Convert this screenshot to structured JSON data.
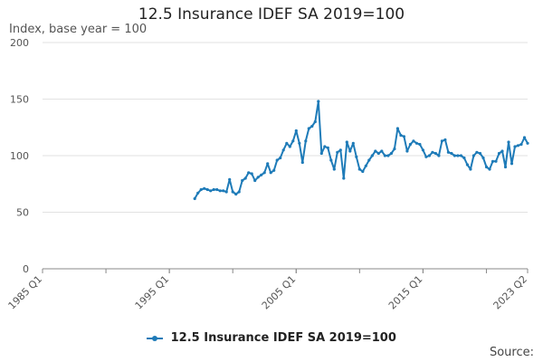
{
  "chart_data": {
    "type": "line",
    "title": "12.5 Insurance IDEF SA 2019=100",
    "ylabel": "Index, base year = 100",
    "ylim": [
      0,
      200
    ],
    "yticks": [
      0,
      50,
      100,
      150,
      200
    ],
    "xtick_labels": [
      "1985 Q1",
      "1995 Q1",
      "2005 Q1",
      "2015 Q1",
      "2023 Q2"
    ],
    "x_start": "1985 Q1",
    "x_end": "2023 Q2",
    "grid": "horizontal",
    "legend_position": "bottom",
    "series": [
      {
        "name": "12.5 Insurance IDEF SA 2019=100",
        "color": "#1e7bb8",
        "data": [
          [
            "1997 Q1",
            62
          ],
          [
            "1997 Q2",
            67
          ],
          [
            "1997 Q3",
            70
          ],
          [
            "1997 Q4",
            71
          ],
          [
            "1998 Q1",
            70
          ],
          [
            "1998 Q2",
            69
          ],
          [
            "1998 Q3",
            70
          ],
          [
            "1998 Q4",
            70
          ],
          [
            "1999 Q1",
            69
          ],
          [
            "1999 Q2",
            69
          ],
          [
            "1999 Q3",
            68
          ],
          [
            "1999 Q4",
            79
          ],
          [
            "2000 Q1",
            68
          ],
          [
            "2000 Q2",
            66
          ],
          [
            "2000 Q3",
            68
          ],
          [
            "2000 Q4",
            78
          ],
          [
            "2001 Q1",
            80
          ],
          [
            "2001 Q2",
            85
          ],
          [
            "2001 Q3",
            84
          ],
          [
            "2001 Q4",
            78
          ],
          [
            "2002 Q1",
            81
          ],
          [
            "2002 Q2",
            83
          ],
          [
            "2002 Q3",
            85
          ],
          [
            "2002 Q4",
            93
          ],
          [
            "2003 Q1",
            85
          ],
          [
            "2003 Q2",
            87
          ],
          [
            "2003 Q3",
            96
          ],
          [
            "2003 Q4",
            98
          ],
          [
            "2004 Q1",
            105
          ],
          [
            "2004 Q2",
            111
          ],
          [
            "2004 Q3",
            108
          ],
          [
            "2004 Q4",
            113
          ],
          [
            "2005 Q1",
            122
          ],
          [
            "2005 Q2",
            111
          ],
          [
            "2005 Q3",
            94
          ],
          [
            "2005 Q4",
            113
          ],
          [
            "2006 Q1",
            124
          ],
          [
            "2006 Q2",
            126
          ],
          [
            "2006 Q3",
            130
          ],
          [
            "2006 Q4",
            148
          ],
          [
            "2007 Q1",
            102
          ],
          [
            "2007 Q2",
            108
          ],
          [
            "2007 Q3",
            107
          ],
          [
            "2007 Q4",
            96
          ],
          [
            "2008 Q1",
            88
          ],
          [
            "2008 Q2",
            103
          ],
          [
            "2008 Q3",
            105
          ],
          [
            "2008 Q4",
            80
          ],
          [
            "2009 Q1",
            112
          ],
          [
            "2009 Q2",
            104
          ],
          [
            "2009 Q3",
            111
          ],
          [
            "2009 Q4",
            99
          ],
          [
            "2010 Q1",
            88
          ],
          [
            "2010 Q2",
            86
          ],
          [
            "2010 Q3",
            91
          ],
          [
            "2010 Q4",
            96
          ],
          [
            "2011 Q1",
            100
          ],
          [
            "2011 Q2",
            104
          ],
          [
            "2011 Q3",
            102
          ],
          [
            "2011 Q4",
            104
          ],
          [
            "2012 Q1",
            100
          ],
          [
            "2012 Q2",
            100
          ],
          [
            "2012 Q3",
            102
          ],
          [
            "2012 Q4",
            106
          ],
          [
            "2013 Q1",
            124
          ],
          [
            "2013 Q2",
            118
          ],
          [
            "2013 Q3",
            117
          ],
          [
            "2013 Q4",
            104
          ],
          [
            "2014 Q1",
            110
          ],
          [
            "2014 Q2",
            113
          ],
          [
            "2014 Q3",
            111
          ],
          [
            "2014 Q4",
            110
          ],
          [
            "2015 Q1",
            105
          ],
          [
            "2015 Q2",
            99
          ],
          [
            "2015 Q3",
            100
          ],
          [
            "2015 Q4",
            103
          ],
          [
            "2016 Q1",
            102
          ],
          [
            "2016 Q2",
            100
          ],
          [
            "2016 Q3",
            113
          ],
          [
            "2016 Q4",
            114
          ],
          [
            "2017 Q1",
            103
          ],
          [
            "2017 Q2",
            102
          ],
          [
            "2017 Q3",
            100
          ],
          [
            "2017 Q4",
            100
          ],
          [
            "2018 Q1",
            100
          ],
          [
            "2018 Q2",
            98
          ],
          [
            "2018 Q3",
            92
          ],
          [
            "2018 Q4",
            88
          ],
          [
            "2019 Q1",
            100
          ],
          [
            "2019 Q2",
            103
          ],
          [
            "2019 Q3",
            102
          ],
          [
            "2019 Q4",
            98
          ],
          [
            "2020 Q1",
            90
          ],
          [
            "2020 Q2",
            88
          ],
          [
            "2020 Q3",
            95
          ],
          [
            "2020 Q4",
            95
          ],
          [
            "2021 Q1",
            102
          ],
          [
            "2021 Q2",
            104
          ],
          [
            "2021 Q3",
            90
          ],
          [
            "2021 Q4",
            112
          ],
          [
            "2022 Q1",
            93
          ],
          [
            "2022 Q2",
            108
          ],
          [
            "2022 Q3",
            109
          ],
          [
            "2022 Q4",
            110
          ],
          [
            "2023 Q1",
            116
          ],
          [
            "2023 Q2",
            111
          ]
        ]
      }
    ]
  },
  "legend": {
    "label": "12.5 Insurance IDEF SA 2019=100"
  },
  "source_label": "Source:"
}
